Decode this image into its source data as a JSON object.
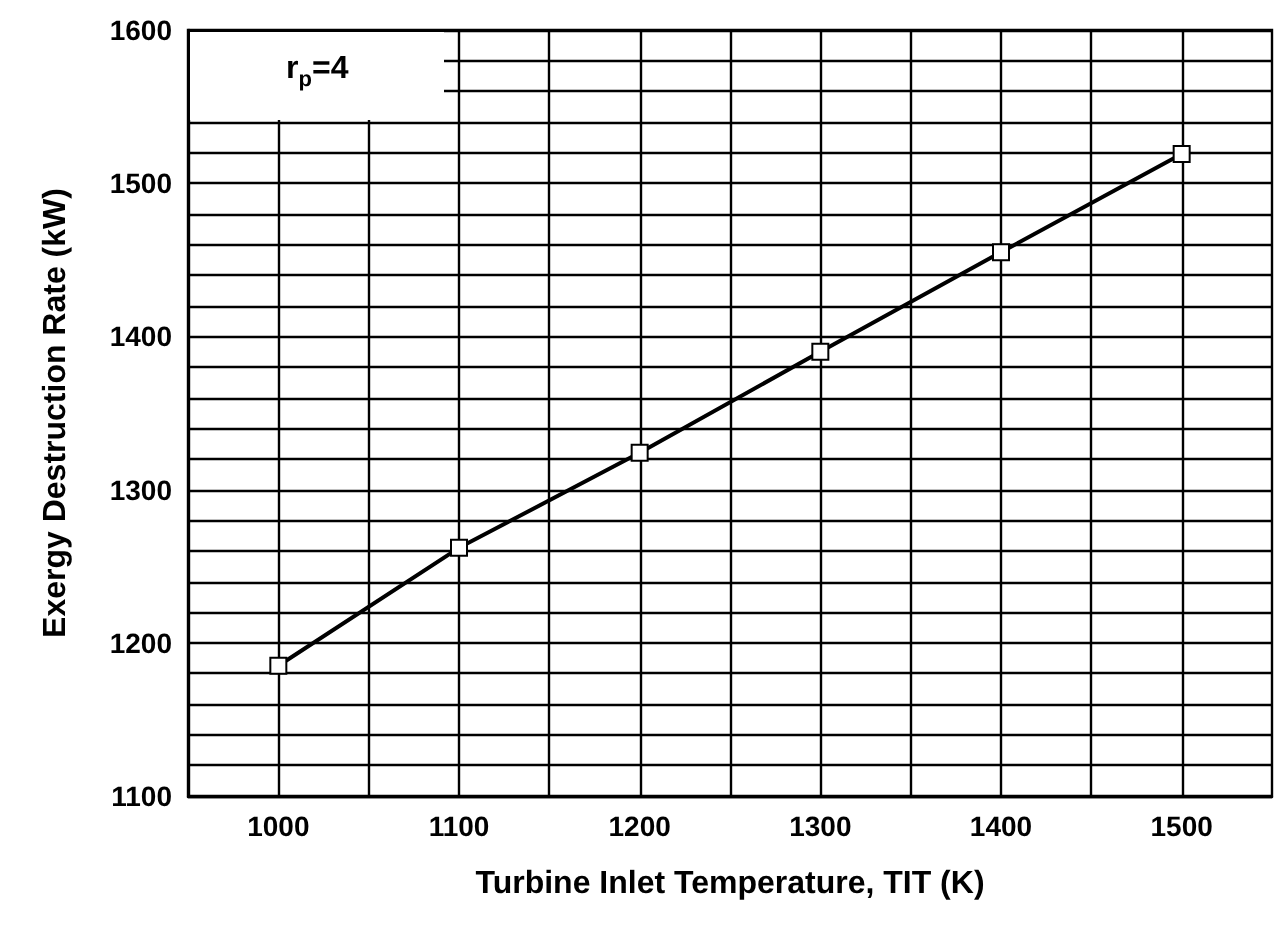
{
  "chart_data": {
    "type": "line",
    "xlabel": "Turbine Inlet Temperature, TIT (K)",
    "ylabel": "Exergy Destruction Rate (kW)",
    "annotations": [
      "r$_{p}$=4"
    ],
    "x": [
      1000,
      1100,
      1200,
      1300,
      1400,
      1500
    ],
    "series": [
      {
        "color": "#000000",
        "values": [
          1185,
          1262,
          1324,
          1390,
          1455,
          1519
        ]
      }
    ],
    "xlim": [
      950,
      1550
    ],
    "xticks": [
      1000,
      {
        "value": 1050,
        "label": null
      },
      1100,
      {
        "value": 1150,
        "label": null
      },
      1200,
      {
        "value": 1250,
        "label": null
      },
      1300,
      {
        "value": 1350,
        "label": null
      },
      1400,
      {
        "value": 1450,
        "label": null
      },
      1500
    ],
    "ylim": [
      1100,
      1600
    ],
    "yticks": [
      1100,
      {
        "value": 1120,
        "label": null
      },
      {
        "value": 1140,
        "label": null
      },
      {
        "value": 1160,
        "label": null
      },
      {
        "value": 1180,
        "label": null
      },
      1200,
      {
        "value": 1220,
        "label": null
      },
      {
        "value": 1240,
        "label": null
      },
      {
        "value": 1260,
        "label": null
      },
      {
        "value": 1280,
        "label": null
      },
      1300,
      {
        "value": 1320,
        "label": null
      },
      {
        "value": 1340,
        "label": null
      },
      {
        "value": 1360,
        "label": null
      },
      {
        "value": 1380,
        "label": null
      },
      1400,
      {
        "value": 1420,
        "label": null
      },
      {
        "value": 1440,
        "label": null
      },
      {
        "value": 1460,
        "label": null
      },
      {
        "value": 1480,
        "label": null
      },
      1500,
      {
        "value": 1520,
        "label": null
      },
      {
        "value": 1540,
        "label": null
      },
      {
        "value": 1560,
        "label": null
      },
      {
        "value": 1580,
        "label": null
      },
      1600
    ],
    "grid": true,
    "marker": "square",
    "line_style": "solid"
  }
}
